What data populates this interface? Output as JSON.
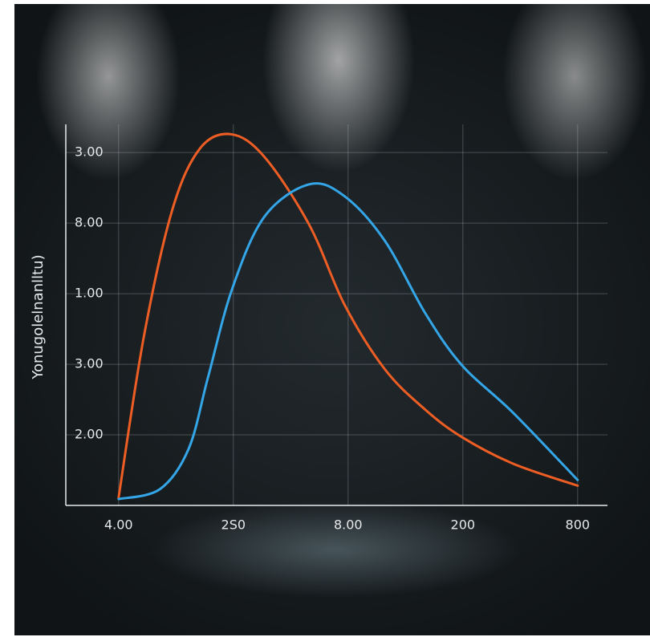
{
  "chart_data": {
    "type": "line",
    "y_label": "Yonugolelnanlltu)",
    "x": [
      0,
      0.22,
      0.36,
      0.47,
      0.61,
      0.71,
      0.78,
      0.98,
      0.99,
      1.27,
      1.66,
      1.97,
      2.32,
      2.67,
      2.99,
      3.44,
      4.0
    ],
    "series": [
      {
        "color": "#ee5e24",
        "x": [
          0,
          0.22,
          0.47,
          0.71,
          0.98,
          1.27,
          1.66,
          1.97,
          2.32,
          2.67,
          2.99,
          3.44,
          4.0
        ],
        "values": [
          0.11,
          2.39,
          4.2,
          5.06,
          5.26,
          4.94,
          3.98,
          2.84,
          1.93,
          1.36,
          0.97,
          0.59,
          0.28
        ]
      },
      {
        "color": "#34a6e8",
        "x": [
          0,
          0.36,
          0.61,
          0.78,
          0.99,
          1.27,
          1.66,
          1.97,
          2.32,
          2.67,
          2.99,
          3.44,
          4.0
        ],
        "values": [
          0.09,
          0.23,
          0.8,
          1.82,
          3.07,
          4.09,
          4.55,
          4.38,
          3.75,
          2.73,
          1.99,
          1.31,
          0.36
        ]
      }
    ],
    "xlim": [
      -0.46,
      4.26
    ],
    "ylim": [
      0,
      5.4
    ],
    "xticks": [
      {
        "value": 0,
        "label": "4.00"
      },
      {
        "value": 1,
        "label": "2S0"
      },
      {
        "value": 2,
        "label": "8.00"
      },
      {
        "value": 3,
        "label": "200"
      },
      {
        "value": 4,
        "label": "800"
      }
    ],
    "yticks": [
      {
        "value": 1,
        "label": "2.00"
      },
      {
        "value": 2,
        "label": "3.00"
      },
      {
        "value": 3,
        "label": "1.00"
      },
      {
        "value": 4,
        "label": "8.00"
      },
      {
        "value": 5,
        "label": "3.00"
      }
    ],
    "grid": true
  }
}
